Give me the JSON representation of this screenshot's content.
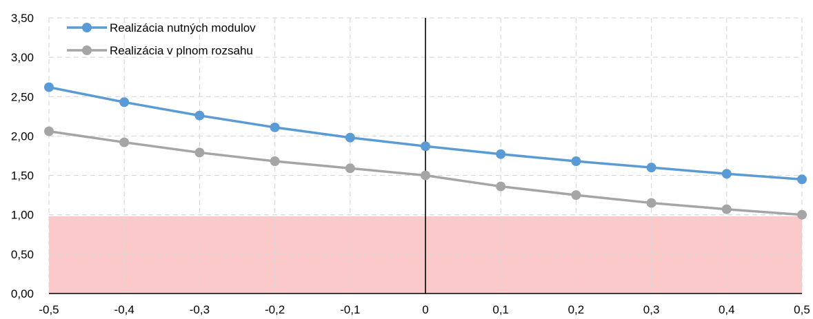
{
  "chart_data": {
    "type": "line",
    "x": [
      -0.5,
      -0.4,
      -0.3,
      -0.2,
      -0.1,
      0,
      0.1,
      0.2,
      0.3,
      0.4,
      0.5
    ],
    "x_tick_labels": [
      "-0,5",
      "-0,4",
      "-0,3",
      "-0,2",
      "-0,1",
      "0",
      "0,1",
      "0,2",
      "0,3",
      "0,4",
      "0,5"
    ],
    "y_tick_labels": [
      "0,00",
      "0,50",
      "1,00",
      "1,50",
      "2,00",
      "2,50",
      "3,00",
      "3,50"
    ],
    "xlim": [
      -0.5,
      0.5
    ],
    "ylim": [
      0,
      3.5
    ],
    "grid": true,
    "legend_position": "top-left",
    "shaded_region": {
      "y_from": 0,
      "y_to": 0.98,
      "color": "#fbc9c9"
    },
    "series": [
      {
        "name": "Realizácia nutných modulov",
        "color": "#5b9bd5",
        "values": [
          2.62,
          2.43,
          2.26,
          2.11,
          1.98,
          1.87,
          1.77,
          1.68,
          1.6,
          1.52,
          1.45
        ]
      },
      {
        "name": "Realizácia v plnom rozsahu",
        "color": "#a5a5a5",
        "values": [
          2.06,
          1.92,
          1.79,
          1.68,
          1.59,
          1.5,
          1.36,
          1.25,
          1.15,
          1.07,
          1.0
        ]
      }
    ]
  }
}
